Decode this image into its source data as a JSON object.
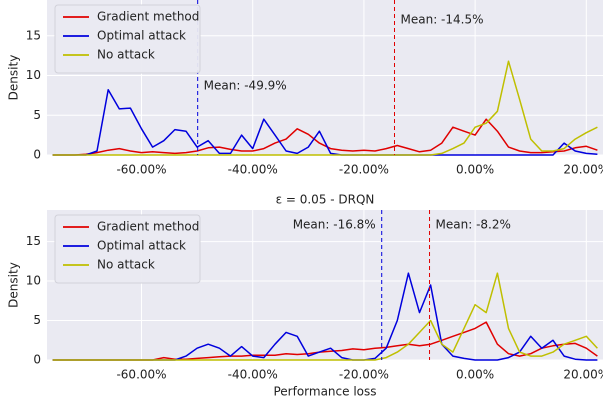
{
  "chart_data": [
    {
      "type": "line",
      "ylabel": "Density",
      "x": [
        -76,
        -74,
        -72,
        -70,
        -68,
        -66,
        -64,
        -62,
        -60,
        -58,
        -56,
        -54,
        -52,
        -50,
        -48,
        -46,
        -44,
        -42,
        -40,
        -38,
        -36,
        -34,
        -32,
        -30,
        -28,
        -26,
        -24,
        -22,
        -20,
        -18,
        -16,
        -14,
        -12,
        -10,
        -8,
        -6,
        -4,
        -2,
        0,
        2,
        4,
        6,
        8,
        10,
        12,
        14,
        16,
        18,
        20,
        22
      ],
      "series": [
        {
          "name": "Gradient method",
          "color": "#e00000",
          "values": [
            0,
            0,
            0,
            0.1,
            0.3,
            0.6,
            0.8,
            0.5,
            0.3,
            0.4,
            0.3,
            0.2,
            0.3,
            0.5,
            0.9,
            1.0,
            0.7,
            0.5,
            0.5,
            0.8,
            1.5,
            2.0,
            3.3,
            2.6,
            1.5,
            0.8,
            0.6,
            0.5,
            0.6,
            0.5,
            0.8,
            1.2,
            0.8,
            0.4,
            0.6,
            1.5,
            3.5,
            3.0,
            2.5,
            4.5,
            3.0,
            1.0,
            0.5,
            0.3,
            0.3,
            0.4,
            0.5,
            0.9,
            1.1,
            0.6
          ]
        },
        {
          "name": "Optimal attack",
          "color": "#0000dd",
          "values": [
            0,
            0,
            0,
            0,
            0.5,
            8.2,
            5.8,
            5.9,
            3.3,
            1.0,
            1.8,
            3.2,
            3.0,
            1.0,
            1.8,
            0.2,
            0.2,
            2.5,
            0.8,
            4.5,
            2.5,
            0.5,
            0.2,
            1.0,
            3.0,
            0.2,
            0,
            0,
            0,
            0,
            0,
            0,
            0,
            0,
            0,
            0,
            0,
            0,
            0,
            0,
            0,
            0,
            0,
            0,
            0,
            0,
            1.5,
            0.5,
            0.2,
            0.1
          ]
        },
        {
          "name": "No attack",
          "color": "#bfbf00",
          "values": [
            0,
            0,
            0,
            0,
            0,
            0,
            0,
            0,
            0,
            0,
            0,
            0,
            0,
            0,
            0,
            0,
            0,
            0,
            0,
            0,
            0,
            0,
            0,
            0,
            0,
            0,
            0,
            0,
            0,
            0,
            0,
            0,
            0,
            0,
            0,
            0.2,
            0.8,
            1.5,
            3.5,
            4.0,
            5.5,
            11.8,
            7.0,
            2.0,
            0.5,
            0.5,
            0.8,
            2.0,
            2.8,
            3.5
          ]
        }
      ],
      "annotations": [
        {
          "x": -14.5,
          "text": "Mean: -14.5%",
          "color": "#e00000"
        },
        {
          "x": -49.9,
          "text": "Mean: -49.9%",
          "color": "#0000dd"
        }
      ],
      "xlim": [
        -77,
        23
      ],
      "xticks": [
        {
          "value": -60,
          "label": "-60.00%"
        },
        {
          "value": -40,
          "label": "-40.00%"
        },
        {
          "value": -20,
          "label": "-20.00%"
        },
        {
          "value": 0,
          "label": "0.00%"
        },
        {
          "value": 20,
          "label": "20.00%"
        }
      ],
      "ylim": [
        0,
        19.5
      ],
      "yticks": [
        0,
        5,
        10,
        15
      ],
      "grid": true,
      "legend": "upper-left"
    },
    {
      "type": "line",
      "title": "ε = 0.05 - DRQN",
      "xlabel": "Performance loss",
      "ylabel": "Density",
      "x": [
        -76,
        -74,
        -72,
        -70,
        -68,
        -66,
        -64,
        -62,
        -60,
        -58,
        -56,
        -54,
        -52,
        -50,
        -48,
        -46,
        -44,
        -42,
        -40,
        -38,
        -36,
        -34,
        -32,
        -30,
        -28,
        -26,
        -24,
        -22,
        -20,
        -18,
        -16,
        -14,
        -12,
        -10,
        -8,
        -6,
        -4,
        -2,
        0,
        2,
        4,
        6,
        8,
        10,
        12,
        14,
        16,
        18,
        20,
        22
      ],
      "series": [
        {
          "name": "Gradient method",
          "color": "#e00000",
          "values": [
            0,
            0,
            0,
            0,
            0,
            0,
            0,
            0,
            0,
            0,
            0.3,
            0.1,
            0.1,
            0.2,
            0.3,
            0.4,
            0.5,
            0.5,
            0.6,
            0.6,
            0.6,
            0.8,
            0.7,
            0.8,
            1.0,
            1.1,
            1.2,
            1.4,
            1.3,
            1.5,
            1.6,
            1.8,
            2.0,
            1.8,
            2.0,
            2.5,
            3.0,
            3.5,
            4.0,
            4.8,
            2.0,
            0.8,
            0.5,
            0.8,
            1.5,
            1.8,
            2.0,
            2.1,
            1.5,
            0.5
          ]
        },
        {
          "name": "Optimal attack",
          "color": "#0000dd",
          "values": [
            0,
            0,
            0,
            0,
            0,
            0,
            0,
            0,
            0,
            0,
            0,
            0,
            0.5,
            1.5,
            2.0,
            1.5,
            0.5,
            1.7,
            0.5,
            0.3,
            2.0,
            3.5,
            3.0,
            0.5,
            1.0,
            1.5,
            0.3,
            0,
            0,
            0.2,
            1.5,
            5.0,
            11.0,
            6.0,
            9.5,
            2.0,
            0.5,
            0.2,
            0,
            0,
            0,
            0.3,
            1.0,
            3.0,
            1.5,
            2.5,
            0.5,
            0.1,
            0,
            0
          ]
        },
        {
          "name": "No attack",
          "color": "#bfbf00",
          "values": [
            0,
            0,
            0,
            0,
            0,
            0,
            0,
            0,
            0,
            0,
            0,
            0,
            0,
            0,
            0,
            0,
            0,
            0,
            0,
            0,
            0,
            0,
            0,
            0,
            0,
            0,
            0,
            0,
            0,
            0,
            0.3,
            1.0,
            2.0,
            3.5,
            5.0,
            2.0,
            1.0,
            4.0,
            7.0,
            6.0,
            11.0,
            4.0,
            1.0,
            0.5,
            0.5,
            1.0,
            2.0,
            2.5,
            3.0,
            1.5
          ]
        }
      ],
      "annotations": [
        {
          "x": -16.8,
          "text": "Mean: -16.8%",
          "color": "#0000dd"
        },
        {
          "x": -8.2,
          "text": "Mean: -8.2%",
          "color": "#e00000"
        }
      ],
      "xlim": [
        -77,
        23
      ],
      "xticks": [
        {
          "value": -60,
          "label": "-60.00%"
        },
        {
          "value": -40,
          "label": "-40.00%"
        },
        {
          "value": -20,
          "label": "-20.00%"
        },
        {
          "value": 0,
          "label": "0.00%"
        },
        {
          "value": 20,
          "label": "20.00%"
        }
      ],
      "ylim": [
        0,
        19
      ],
      "yticks": [
        0,
        5,
        10,
        15
      ],
      "grid": true,
      "legend": "upper-left"
    }
  ]
}
